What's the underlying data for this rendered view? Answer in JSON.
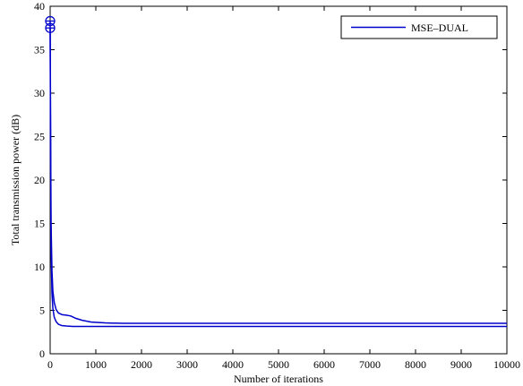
{
  "chart_data": {
    "type": "line",
    "title": "",
    "xlabel": "Number of iterations",
    "ylabel": "Total transmission power (dB)",
    "xlim": [
      0,
      10000
    ],
    "ylim": [
      0,
      40
    ],
    "x_ticks": [
      0,
      1000,
      2000,
      3000,
      4000,
      5000,
      6000,
      7000,
      8000,
      9000,
      10000
    ],
    "y_ticks": [
      0,
      5,
      10,
      15,
      20,
      25,
      30,
      35,
      40
    ],
    "grid": false,
    "legend": {
      "position": "top-right",
      "entries": [
        "MSE–DUAL"
      ]
    },
    "series": [
      {
        "name": "MSE–DUAL",
        "color": "#0000cc",
        "marker_start": "circle-plus",
        "x": [
          0,
          10,
          20,
          40,
          60,
          90,
          130,
          180,
          260,
          350,
          450,
          550,
          700,
          900,
          1200,
          1600,
          2500,
          5000,
          10000
        ],
        "y": [
          38.3,
          26,
          15,
          9.5,
          7.2,
          5.9,
          5.1,
          4.7,
          4.5,
          4.45,
          4.35,
          4.1,
          3.85,
          3.65,
          3.55,
          3.5,
          3.5,
          3.5,
          3.5
        ]
      },
      {
        "name": "",
        "color": "#0000cc",
        "marker_start": "circle-plus",
        "x": [
          0,
          10,
          20,
          40,
          60,
          90,
          130,
          180,
          250,
          350,
          500,
          800,
          1500,
          3000,
          10000
        ],
        "y": [
          37.5,
          22,
          12,
          7,
          5.2,
          4.2,
          3.7,
          3.4,
          3.25,
          3.2,
          3.15,
          3.15,
          3.15,
          3.15,
          3.15
        ]
      }
    ]
  }
}
